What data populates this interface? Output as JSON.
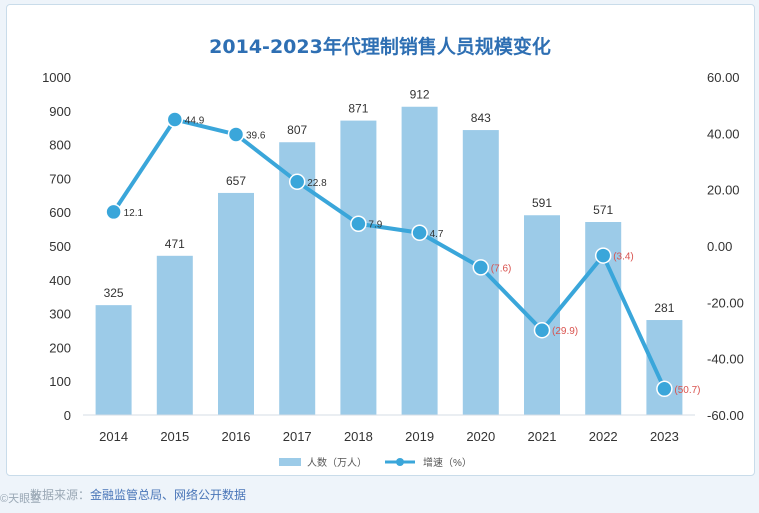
{
  "chart_data": {
    "type": "bar+line",
    "title": "2014-2023年代理制销售人员规模变化",
    "categories": [
      "2014",
      "2015",
      "2016",
      "2017",
      "2018",
      "2019",
      "2020",
      "2021",
      "2022",
      "2023"
    ],
    "series": [
      {
        "name": "人数（万人）",
        "type": "bar",
        "axis": "left",
        "values": [
          325,
          471,
          657,
          807,
          871,
          912,
          843,
          591,
          571,
          281
        ],
        "labels": [
          "325",
          "471",
          "657",
          "807",
          "871",
          "912",
          "843",
          "591",
          "571",
          "281"
        ]
      },
      {
        "name": "增速（%）",
        "type": "line",
        "axis": "right",
        "values": [
          12.1,
          44.9,
          39.6,
          22.8,
          7.9,
          4.7,
          -7.6,
          -29.9,
          -3.4,
          -50.7
        ],
        "labels": [
          "12.1",
          "44.9",
          "39.6",
          "22.8",
          "7.9",
          "4.7",
          "(7.6)",
          "(29.9)",
          "(3.4)",
          "(50.7)"
        ]
      }
    ],
    "y_left": {
      "min": 0,
      "max": 1000,
      "ticks": [
        "0",
        "100",
        "200",
        "300",
        "400",
        "500",
        "600",
        "700",
        "800",
        "900",
        "1000"
      ]
    },
    "y_right": {
      "min": -60,
      "max": 60,
      "ticks": [
        "-60.00",
        "-40.00",
        "-20.00",
        "0.00",
        "20.00",
        "40.00",
        "60.00"
      ]
    },
    "legend": {
      "position": "bottom-center"
    },
    "grid": false
  },
  "colors": {
    "bar": "#9ccbe8",
    "line": "#3aa6da",
    "title": "#2e6fb3",
    "negative_label": "#d9534f",
    "positive_label": "#333333"
  },
  "source": {
    "prefix": "数据来源：",
    "text": "金融监管总局、网络公开数据"
  },
  "watermark": "©天眼查"
}
